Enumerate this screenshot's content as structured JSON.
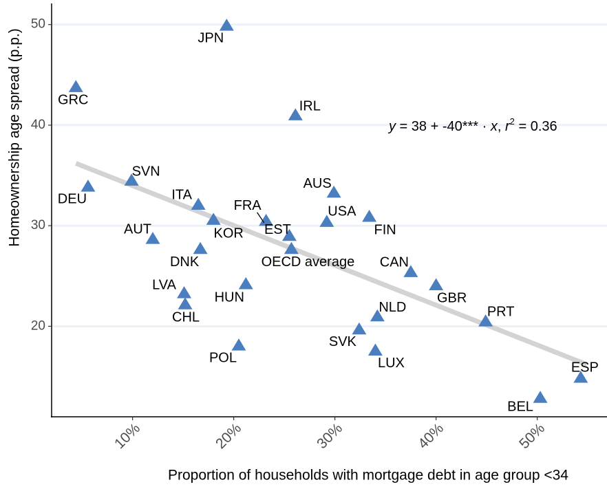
{
  "chart_data": {
    "type": "scatter",
    "x_label": "Proportion of households with mortgage debt in age group <34",
    "y_label": "Homeownership age spread (p.p.)",
    "categories": [
      "JPN",
      "GRC",
      "IRL",
      "SVN",
      "DEU",
      "AUS",
      "ITA",
      "FRA",
      "KOR",
      "USA",
      "FIN",
      "EST",
      "AUT",
      "DNK",
      "OECD average",
      "CAN",
      "GBR",
      "HUN",
      "LVA",
      "CHL",
      "NLD",
      "PRT",
      "SVK",
      "POL",
      "LUX",
      "ESP",
      "BEL"
    ],
    "x": [
      19.3,
      4.4,
      26.1,
      9.9,
      5.6,
      29.9,
      16.5,
      23.2,
      18.0,
      29.2,
      33.4,
      25.5,
      12.0,
      16.7,
      25.7,
      37.5,
      40.0,
      21.2,
      15.1,
      15.2,
      34.2,
      44.9,
      32.4,
      20.5,
      34.0,
      54.3,
      50.3
    ],
    "values": [
      49.9,
      43.8,
      41.0,
      34.5,
      33.9,
      33.3,
      32.1,
      30.5,
      30.6,
      30.4,
      30.9,
      29.0,
      28.7,
      27.7,
      27.7,
      25.4,
      24.1,
      24.2,
      23.3,
      22.2,
      21.0,
      20.5,
      19.7,
      18.1,
      17.6,
      14.9,
      12.9
    ],
    "color": "#4a7ebf",
    "trend": {
      "x": [
        4.4,
        54.9
      ],
      "values": [
        36.2,
        16.2
      ],
      "color": "#d3d3d3"
    },
    "annotation": [
      "y",
      " = 38 + -40*** · ",
      "x",
      ",  ",
      "r",
      "2",
      " = 0.36"
    ],
    "xlim": [
      2.0,
      57.1
    ],
    "ylim": [
      11.0,
      52.1
    ],
    "xticks": [
      {
        "value": 10,
        "label": "10%"
      },
      {
        "value": 20,
        "label": "20%"
      },
      {
        "value": 30,
        "label": "30%"
      },
      {
        "value": 40,
        "label": "40%"
      },
      {
        "value": 50,
        "label": "50%"
      }
    ],
    "yticks": [
      20,
      30,
      40,
      50
    ],
    "grid": true,
    "grid_color": "#ebf1f9"
  }
}
